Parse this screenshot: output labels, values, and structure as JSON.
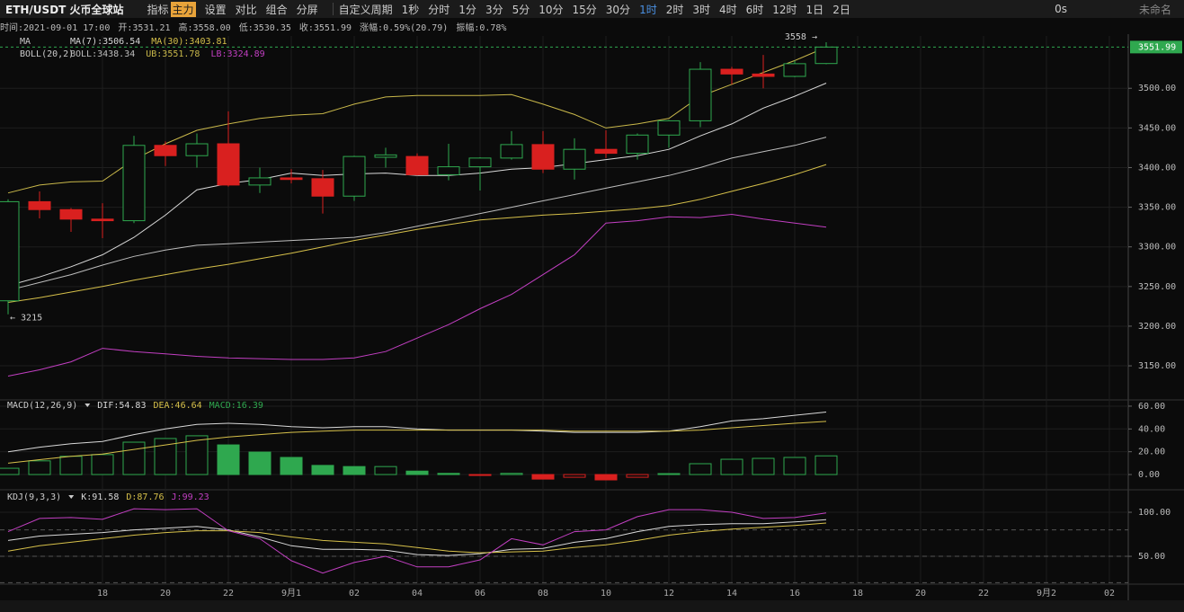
{
  "toolbar": {
    "symbol": "ETH/USDT 火币全球站",
    "items": [
      {
        "text": "指标"
      },
      {
        "text": "主力",
        "highlight": true
      },
      {
        "text": "设置"
      },
      {
        "text": "对比"
      },
      {
        "text": "组合"
      },
      {
        "text": "分屏"
      }
    ],
    "periods": [
      "自定义周期",
      "1秒",
      "分时",
      "1分",
      "3分",
      "5分",
      "10分",
      "15分",
      "30分",
      "1时",
      "2时",
      "3时",
      "4时",
      "6时",
      "12时",
      "1日",
      "2日"
    ],
    "active_period": "1时",
    "countdown": "0s",
    "layout_name": "未命名"
  },
  "info_bar": [
    "时间:2021-09-01 17:00",
    "开:3531.21",
    "高:3558.00",
    "低:3530.35",
    "收:3551.99",
    "涨幅:0.59%(20.79)",
    "振幅:0.78%"
  ],
  "chart_data": [
    {
      "type": "candlestick",
      "categories": [
        null,
        null,
        null,
        "18",
        null,
        "20",
        null,
        "22",
        null,
        "9月1",
        null,
        "02",
        null,
        "04",
        null,
        "06",
        null,
        "08",
        null,
        "10",
        null,
        "12",
        null,
        "14",
        null,
        "16",
        null,
        "18",
        null,
        "20",
        null,
        "22",
        null,
        "9月2",
        null,
        "02"
      ],
      "open": [
        3232,
        3357,
        3347,
        3335,
        3333,
        3428,
        3415,
        3430,
        3378,
        3387,
        3386,
        3364,
        3413,
        3414,
        3391,
        3401,
        3412,
        3429,
        3398,
        3423,
        3418,
        3441,
        3459,
        3524,
        3518,
        3515,
        3531.21,
        null,
        null,
        null,
        null,
        null,
        null,
        null,
        null,
        null
      ],
      "high": [
        3360,
        3370,
        3349,
        3355,
        3440,
        3433,
        3443,
        3471,
        3400,
        3398,
        3397,
        3415,
        3425,
        3418,
        3430,
        3413,
        3446,
        3446,
        3437,
        3447,
        3443,
        3460,
        3533,
        3527,
        3542,
        3535,
        3558,
        null,
        null,
        null,
        null,
        null,
        null,
        null,
        null,
        null
      ],
      "low": [
        3215,
        3336,
        3319,
        3311,
        3330,
        3402,
        3400,
        3376,
        3368,
        3380,
        3342,
        3358,
        3400,
        3390,
        3384,
        3371,
        3410,
        3393,
        3385,
        3412,
        3410,
        3425,
        3451,
        3505,
        3500,
        3514,
        3530.35,
        null,
        null,
        null,
        null,
        null,
        null,
        null,
        null,
        null
      ],
      "close": [
        3357,
        3347,
        3335,
        3333,
        3428,
        3415,
        3430,
        3378,
        3387,
        3385,
        3364,
        3414,
        3416,
        3391,
        3401,
        3412,
        3429,
        3398,
        3423,
        3418,
        3441,
        3459,
        3524,
        3518,
        3515,
        3531,
        3551.99,
        null,
        null,
        null,
        null,
        null,
        null,
        null,
        null,
        null
      ],
      "up_color": "#2fa84f",
      "down_color": "#d9201f",
      "indicator_groups": [
        "MA",
        "BOLL(20,2)"
      ],
      "series": [
        {
          "name": "MA(7):3506.54",
          "group": 0,
          "color": "#d8d8d8",
          "values": [
            3251,
            3262,
            3275,
            3290,
            3312,
            3340,
            3372,
            3380,
            3385,
            3393,
            3390,
            3392,
            3393,
            3390,
            3390,
            3393,
            3398,
            3400,
            3405,
            3410,
            3415,
            3423,
            3440,
            3455,
            3475,
            3490,
            3506.54,
            null,
            null,
            null,
            null,
            null,
            null,
            null,
            null,
            null
          ]
        },
        {
          "name": "MA(30):3403.81",
          "group": 0,
          "color": "#d6c04a",
          "values": [
            3230,
            3236,
            3243,
            3250,
            3258,
            3265,
            3272,
            3278,
            3285,
            3292,
            3300,
            3308,
            3315,
            3322,
            3328,
            3334,
            3337,
            3340,
            3342,
            3345,
            3348,
            3352,
            3360,
            3370,
            3380,
            3391,
            3403.81,
            null,
            null,
            null,
            null,
            null,
            null,
            null,
            null,
            null
          ]
        },
        {
          "name": "BOLL:3438.34",
          "group": 1,
          "color": "#bdbdbd",
          "values": [
            3245,
            3255,
            3265,
            3277,
            3288,
            3296,
            3302,
            3304,
            3306,
            3308,
            3310,
            3312,
            3318,
            3326,
            3334,
            3342,
            3350,
            3358,
            3366,
            3374,
            3382,
            3390,
            3400,
            3412,
            3420,
            3428,
            3438.34,
            null,
            null,
            null,
            null,
            null,
            null,
            null,
            null,
            null
          ]
        },
        {
          "name": "UB:3551.78",
          "group": 1,
          "color": "#c9b84a",
          "values": [
            3368,
            3378,
            3382,
            3383,
            3410,
            3430,
            3447,
            3455,
            3462,
            3466,
            3468,
            3480,
            3489,
            3491,
            3491,
            3491,
            3492,
            3480,
            3467,
            3450,
            3455,
            3462,
            3490,
            3505,
            3520,
            3535,
            3551.78,
            null,
            null,
            null,
            null,
            null,
            null,
            null,
            null,
            null
          ]
        },
        {
          "name": "LB:3324.89",
          "group": 1,
          "color": "#c23fc2",
          "values": [
            3137,
            3145,
            3155,
            3172,
            3168,
            3165,
            3162,
            3160,
            3159,
            3158,
            3158,
            3160,
            3168,
            3185,
            3202,
            3222,
            3240,
            3265,
            3290,
            3330,
            3333,
            3338,
            3337,
            3341,
            3335,
            3330,
            3324.89,
            null,
            null,
            null,
            null,
            null,
            null,
            null,
            null,
            null
          ]
        }
      ],
      "ylim": [
        3107,
        3566
      ],
      "yticks": [
        {
          "value": 3150,
          "label": "3150.00"
        },
        {
          "value": 3200,
          "label": "3200.00"
        },
        {
          "value": 3250,
          "label": "3250.00"
        },
        {
          "value": 3300,
          "label": "3300.00"
        },
        {
          "value": 3350,
          "label": "3350.00"
        },
        {
          "value": 3400,
          "label": "3400.00"
        },
        {
          "value": 3450,
          "label": "3450.00"
        },
        {
          "value": 3500,
          "label": "3500.00"
        }
      ],
      "grid": true,
      "annotations": {
        "high_label": "3558 →",
        "low_label": "← 3215",
        "last_price_label": "3551.99"
      }
    },
    {
      "type": "macd",
      "legend_title": "MACD(12,26,9)",
      "bars": {
        "name": "MACD:16.39",
        "up_color": "#2fa84f",
        "down_color": "#d9201f",
        "values": [
          5.5,
          12,
          16,
          17.5,
          28.4,
          31.6,
          34,
          26,
          19.7,
          15,
          8,
          7,
          7,
          3,
          1,
          -0.8,
          1,
          -4,
          -2.4,
          -4.7,
          -2.4,
          0.8,
          9.5,
          13.4,
          14.2,
          15,
          16.39
        ]
      },
      "series": [
        {
          "name": "DIF:54.83",
          "color": "#d8d8d8",
          "values": [
            20,
            24,
            27,
            29,
            35,
            40,
            44,
            45,
            44,
            42,
            41,
            42,
            42,
            40,
            39,
            39,
            39,
            38,
            37,
            37,
            37,
            38,
            42,
            47,
            49,
            52,
            54.83
          ]
        },
        {
          "name": "DEA:46.64",
          "color": "#d6c04a",
          "values": [
            10,
            13,
            16,
            18,
            22,
            26,
            30,
            33,
            35,
            37,
            38,
            39,
            39,
            39,
            39,
            39,
            39,
            39,
            38,
            38,
            38,
            38,
            39,
            41,
            43,
            45,
            46.64
          ]
        }
      ],
      "ylim": [
        -11.8,
        63.9
      ],
      "yticks": [
        {
          "value": 0,
          "label": "0.00"
        },
        {
          "value": 20,
          "label": "20.00"
        },
        {
          "value": 40,
          "label": "40.00"
        },
        {
          "value": 60,
          "label": "60.00"
        }
      ]
    },
    {
      "type": "line",
      "legend_title": "KDJ(9,3,3)",
      "series": [
        {
          "name": "K:91.58",
          "color": "#d8d8d8",
          "values": [
            68,
            73,
            75,
            77,
            80,
            82,
            84,
            80,
            72,
            62,
            58,
            58,
            57,
            52,
            51,
            53,
            58,
            59,
            66,
            70,
            78,
            84,
            86,
            87,
            87,
            89,
            91.58
          ]
        },
        {
          "name": "D:87.76",
          "color": "#d6c04a",
          "values": [
            56,
            62,
            66,
            70,
            74,
            77,
            79,
            79,
            77,
            72,
            68,
            66,
            64,
            60,
            56,
            54,
            55,
            56,
            60,
            63,
            68,
            74,
            78,
            81,
            83,
            85,
            87.76
          ]
        },
        {
          "name": "J:99.23",
          "color": "#c23fc2",
          "values": [
            78,
            93,
            94,
            92,
            104,
            103,
            104,
            79,
            70,
            45,
            31,
            43,
            50,
            38,
            38,
            46,
            70,
            63,
            78,
            80,
            95,
            103,
            103,
            100,
            93,
            94,
            99.23
          ]
        }
      ],
      "ylim": [
        18.4,
        123.5
      ],
      "yticks": [
        {
          "value": 50,
          "label": "50.00"
        },
        {
          "value": 100,
          "label": "100.00"
        }
      ],
      "ref_lines": [
        20,
        50,
        80
      ]
    }
  ]
}
